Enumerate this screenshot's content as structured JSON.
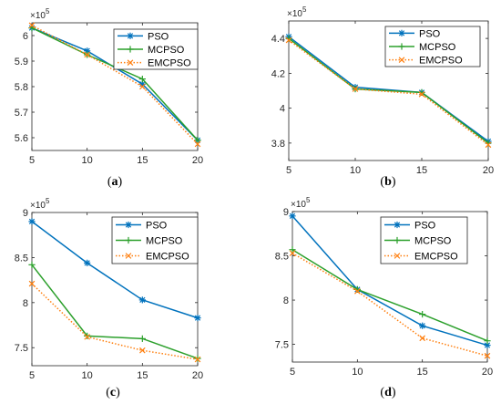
{
  "colors": {
    "PSO": "#0072BD",
    "MCPSO": "#2CA02C",
    "EMCPSO": "#FF7F0E",
    "axis": "#262626",
    "legend_border": "#262626"
  },
  "chart_data": [
    {
      "type": "line",
      "panel": "a",
      "caption": "(a)",
      "x": [
        5,
        10,
        15,
        20
      ],
      "xticks": [
        "5",
        "10",
        "15",
        "20"
      ],
      "xlim": [
        5,
        20
      ],
      "ylim": [
        5.55,
        6.05
      ],
      "yticks": [
        5.6,
        5.7,
        5.8,
        5.9,
        6.0
      ],
      "ytick_labels": [
        "5.6",
        "5.7",
        "5.8",
        "5.9",
        "6"
      ],
      "y_exponent_label": "×10",
      "y_exponent_power": "5",
      "legend_position": "top-right",
      "grid": false,
      "series": [
        {
          "name": "PSO",
          "marker": "star",
          "line": "solid",
          "values": [
            6.03,
            5.94,
            5.81,
            5.59
          ]
        },
        {
          "name": "MCPSO",
          "marker": "plus",
          "line": "solid",
          "values": [
            6.03,
            5.925,
            5.83,
            5.59
          ]
        },
        {
          "name": "EMCPSO",
          "marker": "x",
          "line": "dotted",
          "values": [
            6.04,
            5.925,
            5.8,
            5.575
          ]
        }
      ]
    },
    {
      "type": "line",
      "panel": "b",
      "caption": "(b)",
      "x": [
        5,
        10,
        15,
        20
      ],
      "xticks": [
        "5",
        "10",
        "15",
        "20"
      ],
      "xlim": [
        5,
        20
      ],
      "ylim": [
        3.7,
        4.5
      ],
      "yticks": [
        3.8,
        4.0,
        4.2,
        4.4
      ],
      "ytick_labels": [
        "3.8",
        "4",
        "4.2",
        "4.4"
      ],
      "y_exponent_label": "×10",
      "y_exponent_power": "5",
      "legend_position": "top-right",
      "grid": false,
      "series": [
        {
          "name": "PSO",
          "marker": "star",
          "line": "solid",
          "values": [
            4.41,
            4.12,
            4.09,
            3.81
          ]
        },
        {
          "name": "MCPSO",
          "marker": "plus",
          "line": "solid",
          "values": [
            4.4,
            4.11,
            4.09,
            3.8
          ]
        },
        {
          "name": "EMCPSO",
          "marker": "x",
          "line": "dotted",
          "values": [
            4.39,
            4.11,
            4.08,
            3.79
          ]
        }
      ]
    },
    {
      "type": "line",
      "panel": "c",
      "caption": "(c)",
      "x": [
        5,
        10,
        15,
        20
      ],
      "xticks": [
        "5",
        "10",
        "15",
        "20"
      ],
      "xlim": [
        5,
        20
      ],
      "ylim": [
        7.3,
        9.0
      ],
      "yticks": [
        7.5,
        8.0,
        8.5,
        9.0
      ],
      "ytick_labels": [
        "7.5",
        "8",
        "8.5",
        "9"
      ],
      "y_exponent_label": "×10",
      "y_exponent_power": "5",
      "legend_position": "top-right",
      "grid": false,
      "series": [
        {
          "name": "PSO",
          "marker": "star",
          "line": "solid",
          "values": [
            8.9,
            8.44,
            8.03,
            7.83
          ]
        },
        {
          "name": "MCPSO",
          "marker": "plus",
          "line": "solid",
          "values": [
            8.42,
            7.63,
            7.6,
            7.38
          ]
        },
        {
          "name": "EMCPSO",
          "marker": "x",
          "line": "dotted",
          "values": [
            8.21,
            7.62,
            7.47,
            7.37
          ]
        }
      ]
    },
    {
      "type": "line",
      "panel": "d",
      "caption": "(d)",
      "x": [
        5,
        10,
        15,
        20
      ],
      "xticks": [
        "5",
        "10",
        "15",
        "20"
      ],
      "xlim": [
        5,
        20
      ],
      "ylim": [
        7.3,
        9.0
      ],
      "yticks": [
        7.5,
        8.0,
        8.5,
        9.0
      ],
      "ytick_labels": [
        "7.5",
        "8",
        "8.5",
        "9"
      ],
      "y_exponent_label": "×10",
      "y_exponent_power": "5",
      "legend_position": "top-right",
      "grid": false,
      "series": [
        {
          "name": "PSO",
          "marker": "star",
          "line": "solid",
          "values": [
            8.95,
            8.12,
            7.71,
            7.49
          ]
        },
        {
          "name": "MCPSO",
          "marker": "plus",
          "line": "solid",
          "values": [
            8.57,
            8.12,
            7.84,
            7.54
          ]
        },
        {
          "name": "EMCPSO",
          "marker": "x",
          "line": "dotted",
          "values": [
            8.53,
            8.1,
            7.57,
            7.37
          ]
        }
      ]
    }
  ]
}
